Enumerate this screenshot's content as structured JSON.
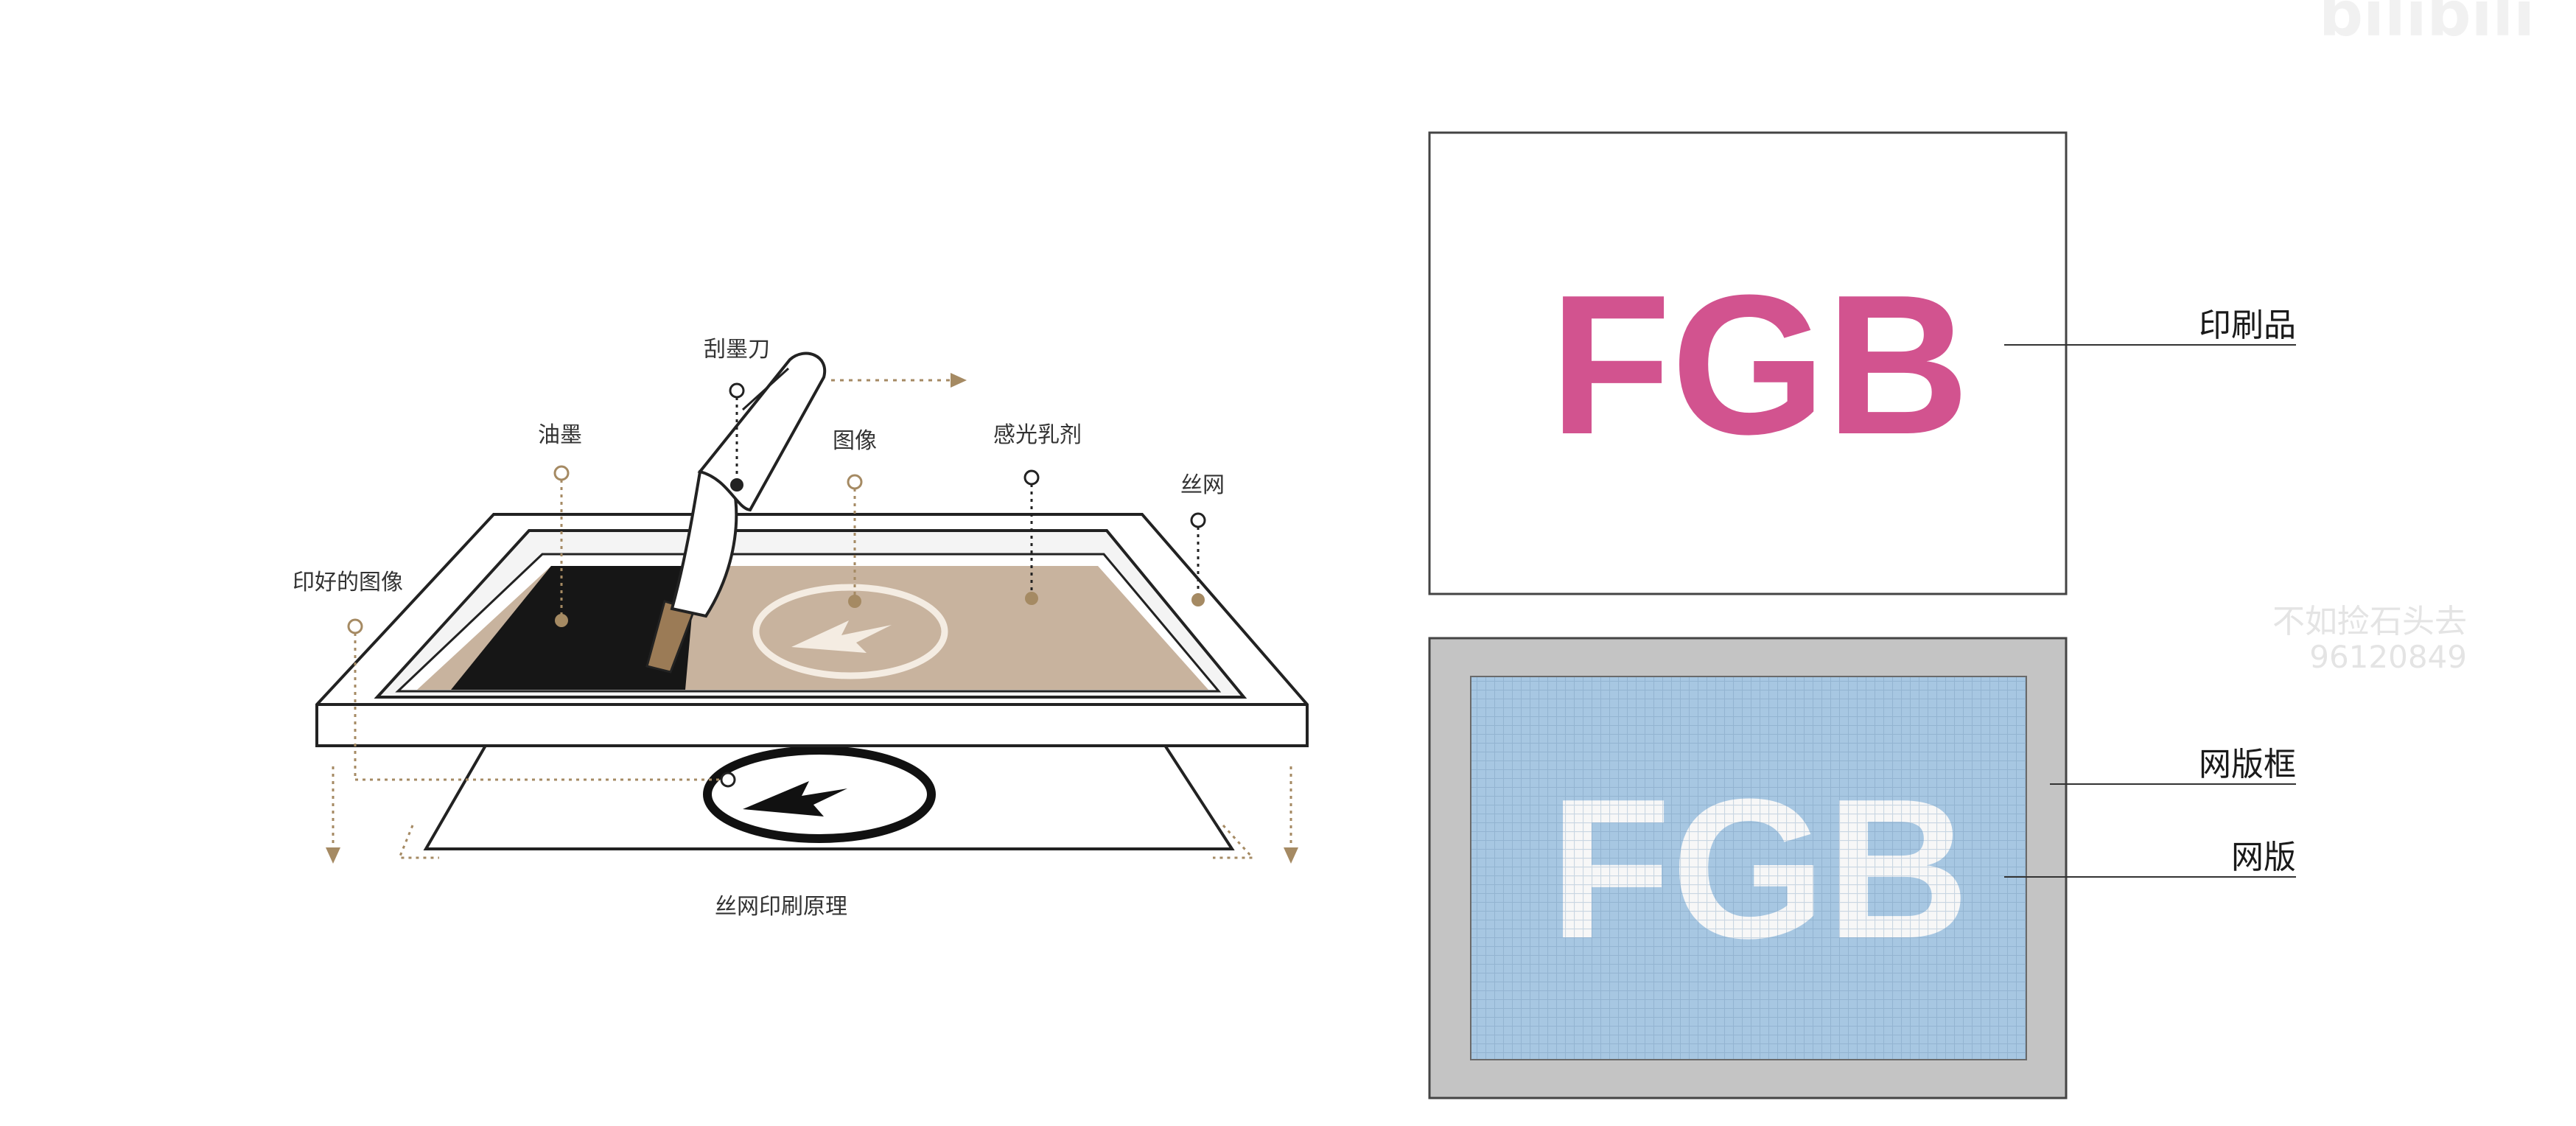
{
  "left_diagram": {
    "caption": "丝网印刷原理",
    "labels": {
      "squeegee": "刮墨刀",
      "ink": "油墨",
      "image": "图像",
      "emulsion": "感光乳剂",
      "screen_mesh": "丝网",
      "printed_image": "印好的图像"
    }
  },
  "right_diagram": {
    "print_text": "FGB",
    "screen_text": "FGB",
    "labels": {
      "printed_product": "印刷品",
      "screen_frame": "网版框",
      "screen_plate": "网版"
    }
  },
  "watermarks": {
    "top_right": "bilibili",
    "channel_name": "不如捡石头去",
    "channel_id": "96120849"
  },
  "colors": {
    "print_text": "#d2538f",
    "screen_mesh_fill": "#a7c7e2",
    "screen_frame_fill": "#c4c4c4",
    "emulsion_fill": "#c8b39e",
    "ink_fill": "#161616",
    "leader_dot": "#a58a63"
  }
}
